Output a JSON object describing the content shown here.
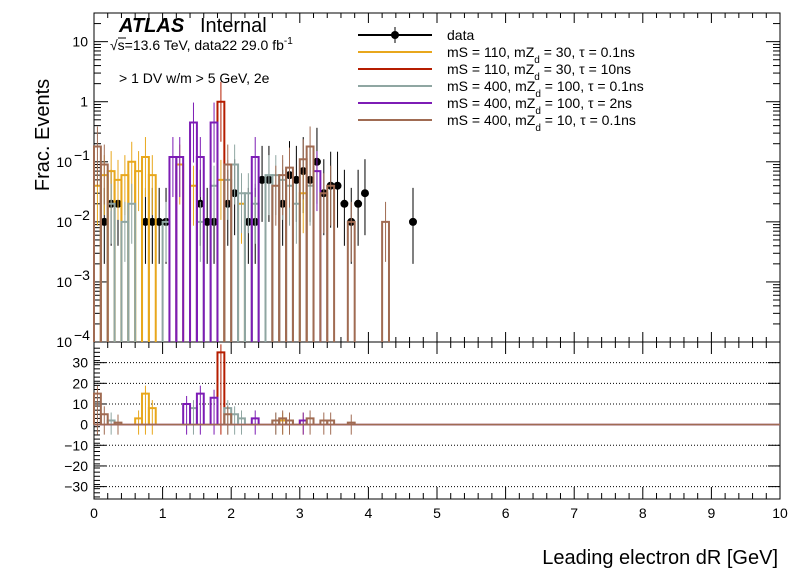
{
  "header": {
    "experiment": "ATLAS",
    "status": "Internal",
    "energy": "√s=13.6 TeV, data22 29.0 fb",
    "lumi_exp": "-1",
    "selection": "> 1 DV w/m > 5 GeV, 2e"
  },
  "chart_data": [
    {
      "type": "line",
      "panel": "main",
      "ylabel": "Frac. Events",
      "yscale": "log",
      "ylim": [
        0.0001,
        30
      ],
      "xlim": [
        0,
        10
      ],
      "yticks": [
        {
          "v": 10,
          "label": "10"
        },
        {
          "v": 1,
          "label": "1"
        },
        {
          "v": 0.1,
          "label": "10",
          "exp": "−1"
        },
        {
          "v": 0.01,
          "label": "10",
          "exp": "−2"
        },
        {
          "v": 0.001,
          "label": "10",
          "exp": "−3"
        },
        {
          "v": 0.0001,
          "label": "10",
          "exp": "−4"
        }
      ],
      "legend_position": "top-right",
      "series": [
        {
          "name": "data",
          "kind": "points",
          "color": "#000000",
          "x": [
            0.15,
            0.25,
            0.35,
            0.75,
            0.85,
            0.95,
            1.05,
            1.55,
            1.65,
            1.75,
            1.95,
            2.05,
            2.25,
            2.35,
            2.45,
            2.55,
            2.75,
            2.85,
            2.95,
            3.05,
            3.15,
            3.25,
            3.35,
            3.45,
            3.55,
            3.65,
            3.75,
            3.85,
            3.95,
            4.65
          ],
          "y": [
            0.01,
            0.02,
            0.02,
            0.01,
            0.01,
            0.01,
            0.01,
            0.02,
            0.01,
            0.01,
            0.02,
            0.03,
            0.01,
            0.01,
            0.05,
            0.05,
            0.02,
            0.06,
            0.05,
            0.07,
            0.05,
            0.1,
            0.03,
            0.04,
            0.04,
            0.02,
            0.01,
            0.02,
            0.03,
            0.01
          ]
        },
        {
          "name_parts": [
            "mS = 110, mZ",
            "d",
            " = 30, τ = 0.1ns"
          ],
          "kind": "hist",
          "color": "#e8a71c",
          "x": [
            0.05,
            0.15,
            0.25,
            0.35,
            0.45,
            0.55,
            0.65,
            0.75,
            0.85,
            1.25,
            1.45,
            1.85,
            2.15,
            3.05
          ],
          "y": [
            0.04,
            0.06,
            0.07,
            0.05,
            0.06,
            0.1,
            0.07,
            0.12,
            0.06,
            0.09,
            0.04,
            0.05,
            0.02,
            0.03
          ]
        },
        {
          "name_parts": [
            "mS = 110, mZ",
            "d",
            " = 30, τ = 10ns"
          ],
          "kind": "hist",
          "color": "#b51d00",
          "x": [
            1.85
          ],
          "y": [
            1.0
          ]
        },
        {
          "name_parts": [
            "mS = 400, mZ",
            "d",
            " = 100, τ = 0.1ns"
          ],
          "kind": "hist",
          "color": "#8fa6a2",
          "x": [
            0.25,
            0.45,
            0.55,
            1.05,
            1.55,
            1.75,
            1.95,
            2.05,
            2.15,
            2.25,
            2.35,
            2.55,
            2.65,
            2.75,
            2.85,
            2.95,
            3.15
          ],
          "y": [
            0.02,
            0.01,
            0.02,
            0.01,
            0.01,
            0.04,
            0.05,
            0.09,
            0.03,
            0.03,
            0.02,
            0.06,
            0.06,
            0.05,
            0.04,
            0.02,
            0.04
          ]
        },
        {
          "name_parts": [
            "mS = 400, mZ",
            "d",
            " = 100, τ = 2ns"
          ],
          "kind": "hist",
          "color": "#7d1cb5",
          "x": [
            1.15,
            1.25,
            1.45,
            1.55,
            1.75,
            2.35,
            3.25
          ],
          "y": [
            0.12,
            0.12,
            0.45,
            0.12,
            0.45,
            0.12,
            0.07
          ]
        },
        {
          "name_parts": [
            "mS = 400, mZ",
            "d",
            " = 10, τ = 0.1ns"
          ],
          "kind": "hist",
          "color": "#a06b52",
          "x": [
            0.05,
            0.15,
            1.95,
            2.65,
            2.75,
            2.85,
            3.05,
            3.15,
            3.35,
            3.45,
            3.75,
            4.25
          ],
          "y": [
            0.18,
            0.09,
            0.09,
            0.04,
            0.06,
            0.08,
            0.11,
            0.18,
            0.03,
            0.04,
            0.01,
            0.01
          ]
        }
      ]
    },
    {
      "type": "line",
      "panel": "ratio",
      "ylabel": "",
      "xlabel": "Leading electron dR [GeV]",
      "ylim": [
        -36,
        40
      ],
      "xlim": [
        0,
        10
      ],
      "yticks": [
        -30,
        -20,
        -10,
        0,
        10,
        20,
        30
      ],
      "xticks": [
        0,
        1,
        2,
        3,
        4,
        5,
        6,
        7,
        8,
        9,
        10
      ],
      "grid": "horizontal dotted",
      "series": [
        {
          "color": "#e8a71c",
          "x": [
            0.65,
            0.75,
            0.85,
            2.75,
            3.05
          ],
          "y": [
            3,
            15,
            8,
            2,
            2
          ]
        },
        {
          "color": "#b51d00",
          "x": [
            1.85
          ],
          "y": [
            35
          ]
        },
        {
          "color": "#8fa6a2",
          "x": [
            0.25,
            1.45,
            1.95,
            2.05,
            2.15,
            2.65,
            2.85
          ],
          "y": [
            2,
            8,
            8,
            5,
            3,
            2,
            2
          ]
        },
        {
          "color": "#7d1cb5",
          "x": [
            1.35,
            1.55,
            1.75,
            2.35,
            3.05
          ],
          "y": [
            10,
            15,
            13,
            3,
            2
          ]
        },
        {
          "color": "#a06b52",
          "x": [
            0.05,
            0.15,
            0.35,
            1.95,
            2.65,
            2.75,
            2.85,
            3.15,
            3.35,
            3.45,
            3.75
          ],
          "y": [
            15,
            5,
            1,
            5,
            2,
            3,
            2,
            3,
            2,
            2,
            1
          ]
        }
      ]
    }
  ]
}
